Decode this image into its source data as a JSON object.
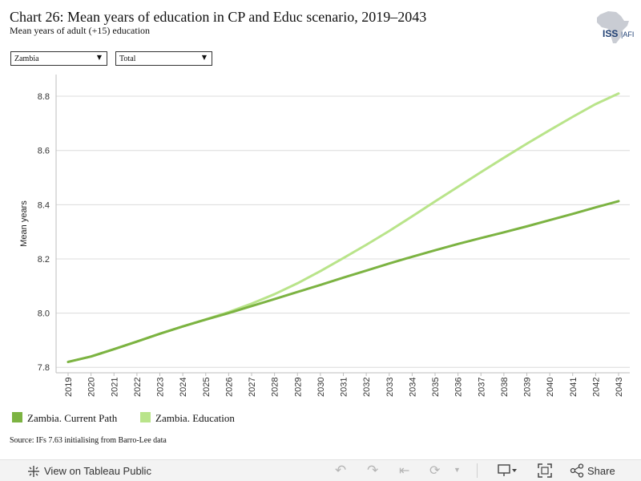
{
  "header": {
    "title": "Chart 26: Mean years of education in CP and Educ scenario, 2019–2043",
    "subtitle": "Mean years of adult (+15) education",
    "logo_text": "ISS|AFI"
  },
  "filters": {
    "country": "Zambia",
    "group": "Total"
  },
  "legend": {
    "items": [
      {
        "label": "Zambia. Current Path",
        "color": "#7cb342"
      },
      {
        "label": "Zambia. Education",
        "color": "#b9e48a"
      }
    ]
  },
  "source": "Source: IFs 7.63 initialising from Barro-Lee data",
  "toolbar": {
    "view_label": "View on Tableau Public",
    "share_label": "Share",
    "icons": [
      "tableau-icon",
      "undo-icon",
      "redo-icon",
      "revert-icon",
      "refresh-icon",
      "download-icon",
      "fullscreen-icon",
      "share-icon"
    ]
  },
  "chart_data": {
    "type": "line",
    "title": "",
    "xlabel": "",
    "ylabel": "Mean years",
    "ylim": [
      7.78,
      8.88
    ],
    "yticks": [
      7.8,
      8.0,
      8.2,
      8.4,
      8.6,
      8.8
    ],
    "grid": true,
    "legend_position": "bottom-left",
    "x": [
      2019,
      2020,
      2021,
      2022,
      2023,
      2024,
      2025,
      2026,
      2027,
      2028,
      2029,
      2030,
      2031,
      2032,
      2033,
      2034,
      2035,
      2036,
      2037,
      2038,
      2039,
      2040,
      2041,
      2042,
      2043
    ],
    "series": [
      {
        "name": "Zambia. Current Path",
        "color": "#7cb342",
        "values": [
          7.82,
          7.84,
          7.867,
          7.895,
          7.924,
          7.951,
          7.976,
          8.0,
          8.026,
          8.052,
          8.078,
          8.104,
          8.131,
          8.157,
          8.183,
          8.208,
          8.232,
          8.255,
          8.277,
          8.298,
          8.32,
          8.343,
          8.366,
          8.39,
          8.413
        ]
      },
      {
        "name": "Zambia. Education",
        "color": "#b9e48a",
        "values": [
          7.82,
          7.84,
          7.867,
          7.895,
          7.924,
          7.951,
          7.977,
          8.004,
          8.035,
          8.07,
          8.11,
          8.155,
          8.203,
          8.252,
          8.303,
          8.357,
          8.412,
          8.466,
          8.52,
          8.573,
          8.625,
          8.675,
          8.724,
          8.771,
          8.81
        ]
      }
    ]
  }
}
